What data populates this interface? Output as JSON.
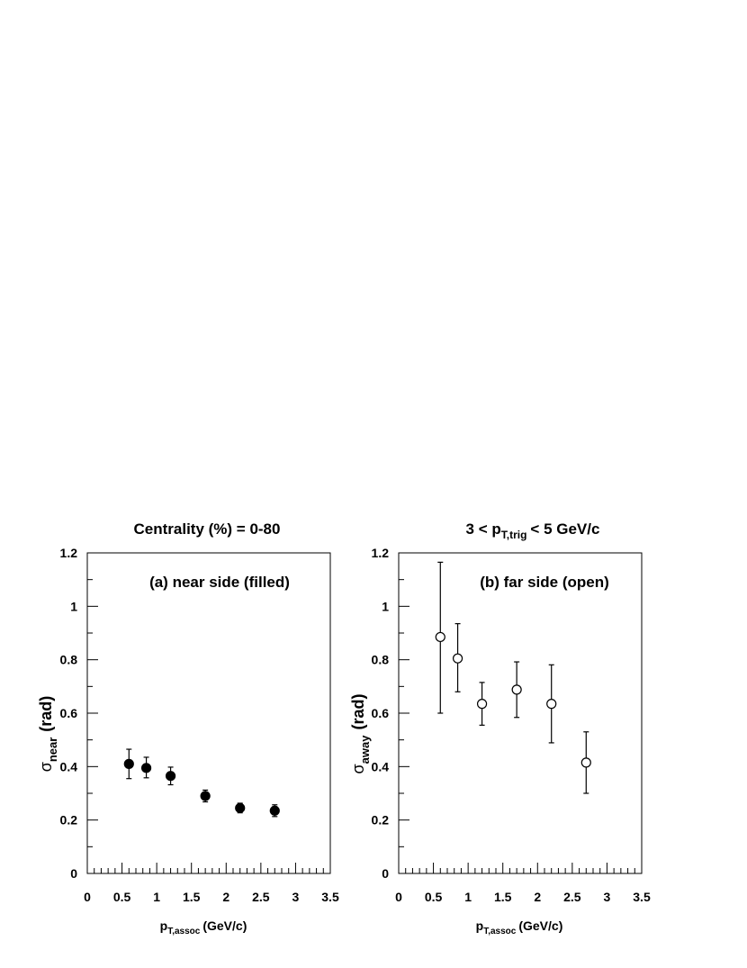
{
  "panels": [
    {
      "title": "Centrality (%) = 0-80",
      "label": "(a) near side  (filled)",
      "ylabel_main": "σ",
      "ylabel_sub": "near",
      "ylabel_unit": "(rad)",
      "xlabel_main": "p",
      "xlabel_sub": "T,assoc",
      "xlabel_unit": "(GeV/c)",
      "marker": "filled"
    },
    {
      "title_pre": "3 < p",
      "title_sub": "T,trig",
      "title_post": "< 5 GeV/c",
      "label": "(b)  far side  (open)",
      "ylabel_main": "σ",
      "ylabel_sub": "away",
      "ylabel_unit": "(rad)",
      "xlabel_main": "p",
      "xlabel_sub": "T,assoc",
      "xlabel_unit": "(GeV/c)",
      "marker": "open"
    }
  ],
  "chart_data": [
    {
      "type": "scatter",
      "title": "Centrality (%) = 0-80",
      "xlabel": "p_T,assoc (GeV/c)",
      "ylabel": "σ_near (rad)",
      "xlim": [
        0,
        3.5
      ],
      "ylim": [
        0,
        1.2
      ],
      "x_ticks": [
        "0",
        "0.5",
        "1",
        "1.5",
        "2",
        "2.5",
        "3",
        "3.5"
      ],
      "y_ticks": [
        "0",
        "0.2",
        "0.4",
        "0.6",
        "0.8",
        "1",
        "1.2"
      ],
      "grid": false,
      "series": [
        {
          "name": "(a) near side  (filled)",
          "x": [
            0.6,
            0.85,
            1.2,
            1.7,
            2.2,
            2.7
          ],
          "y": [
            0.41,
            0.395,
            0.365,
            0.29,
            0.245,
            0.235
          ],
          "err_up": [
            0.055,
            0.04,
            0.033,
            0.022,
            0.018,
            0.022
          ],
          "err_down": [
            0.055,
            0.037,
            0.033,
            0.022,
            0.018,
            0.022
          ],
          "color": "#000000"
        }
      ]
    },
    {
      "type": "scatter",
      "title": "3 < p_T,trig < 5 GeV/c",
      "xlabel": "p_T,assoc (GeV/c)",
      "ylabel": "σ_away (rad)",
      "xlim": [
        0,
        3.5
      ],
      "ylim": [
        0,
        1.2
      ],
      "x_ticks": [
        "0",
        "0.5",
        "1",
        "1.5",
        "2",
        "2.5",
        "3",
        "3.5"
      ],
      "y_ticks": [
        "0",
        "0.2",
        "0.4",
        "0.6",
        "0.8",
        "1",
        "1.2"
      ],
      "grid": false,
      "series": [
        {
          "name": "(b)  far side  (open)",
          "x": [
            0.6,
            0.85,
            1.2,
            1.7,
            2.2,
            2.7
          ],
          "y": [
            0.885,
            0.805,
            0.635,
            0.688,
            0.635,
            0.415
          ],
          "err_up": [
            0.28,
            0.13,
            0.08,
            0.104,
            0.146,
            0.115
          ],
          "err_down": [
            0.285,
            0.125,
            0.08,
            0.104,
            0.146,
            0.115
          ],
          "color": "#000000"
        }
      ]
    }
  ]
}
